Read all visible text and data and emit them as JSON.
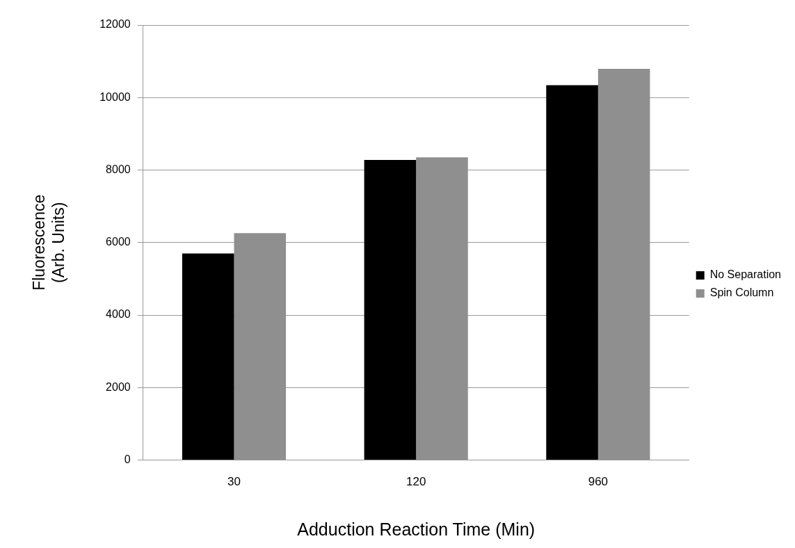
{
  "chart_data": {
    "type": "bar",
    "xlabel": "Adduction Reaction Time (Min)",
    "ylabel": "Fluorescence\n(Arb. Units)",
    "categories": [
      "30",
      "120",
      "960"
    ],
    "series": [
      {
        "name": "No Separation",
        "color": "#000000",
        "values": [
          5700,
          8280,
          10340
        ]
      },
      {
        "name": "Spin Column",
        "color": "#8f8f8f",
        "values": [
          6260,
          8350,
          10790
        ]
      }
    ],
    "ylim": [
      0,
      12000
    ],
    "yticks": [
      0,
      2000,
      4000,
      6000,
      8000,
      10000,
      12000
    ],
    "grid": "y",
    "legend": "right"
  }
}
